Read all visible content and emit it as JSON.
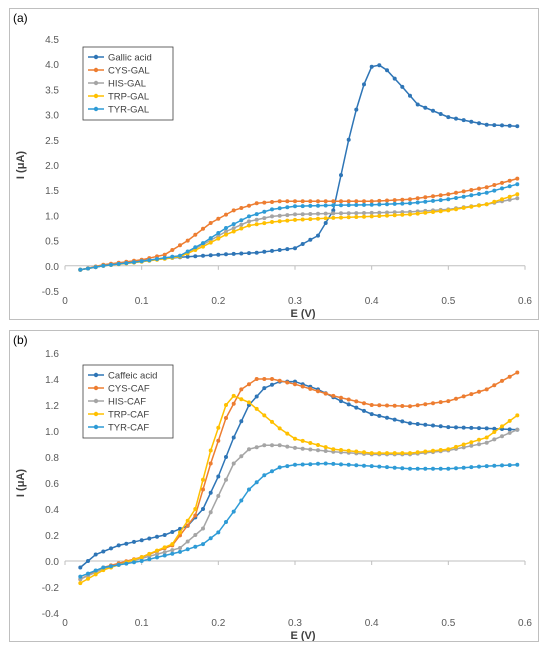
{
  "chart_data": [
    {
      "type": "line",
      "panel_label": "(a)",
      "xlabel": "E (V)",
      "ylabel": "I (μA)",
      "xlim": [
        0,
        0.6
      ],
      "ylim": [
        -0.5,
        4.5
      ],
      "xticks": [
        0,
        0.1,
        0.2,
        0.3,
        0.4,
        0.5,
        0.6
      ],
      "xtick_labels": [
        "0",
        "0.1",
        "0.2",
        "0.3",
        "0.4",
        "0.5",
        "0.6"
      ],
      "yticks": [
        -0.5,
        0,
        0.5,
        1,
        1.5,
        2,
        2.5,
        3,
        3.5,
        4,
        4.5
      ],
      "ytick_labels": [
        "-0.5",
        "0.0",
        "0.5",
        "1.0",
        "1.5",
        "2.0",
        "2.5",
        "3.0",
        "3.5",
        "4.0",
        "4.5"
      ],
      "grid": false,
      "legend_position": "top-left",
      "series": [
        {
          "name": "Gallic acid",
          "color": "#2e75b6",
          "x": [
            0.02,
            0.05,
            0.1,
            0.15,
            0.2,
            0.25,
            0.3,
            0.33,
            0.35,
            0.36,
            0.37,
            0.38,
            0.39,
            0.4,
            0.41,
            0.42,
            0.44,
            0.46,
            0.5,
            0.55,
            0.59
          ],
          "y": [
            -0.08,
            0.0,
            0.1,
            0.17,
            0.22,
            0.26,
            0.35,
            0.6,
            1.1,
            1.8,
            2.5,
            3.1,
            3.6,
            3.95,
            3.98,
            3.88,
            3.55,
            3.2,
            2.95,
            2.8,
            2.77
          ]
        },
        {
          "name": "CYS-GAL",
          "color": "#ed7d31",
          "x": [
            0.02,
            0.05,
            0.1,
            0.13,
            0.16,
            0.19,
            0.22,
            0.25,
            0.28,
            0.3,
            0.35,
            0.4,
            0.45,
            0.5,
            0.55,
            0.59
          ],
          "y": [
            -0.08,
            0.02,
            0.12,
            0.22,
            0.5,
            0.85,
            1.1,
            1.24,
            1.28,
            1.28,
            1.28,
            1.28,
            1.32,
            1.42,
            1.56,
            1.73
          ]
        },
        {
          "name": "HIS-GAL",
          "color": "#a5a5a5",
          "x": [
            0.02,
            0.05,
            0.1,
            0.15,
            0.18,
            0.21,
            0.24,
            0.27,
            0.3,
            0.35,
            0.4,
            0.45,
            0.5,
            0.55,
            0.59
          ],
          "y": [
            -0.08,
            0.0,
            0.09,
            0.2,
            0.42,
            0.68,
            0.88,
            0.98,
            1.02,
            1.04,
            1.05,
            1.07,
            1.12,
            1.22,
            1.34
          ]
        },
        {
          "name": "TRP-GAL",
          "color": "#ffc000",
          "x": [
            0.02,
            0.05,
            0.1,
            0.15,
            0.18,
            0.21,
            0.24,
            0.27,
            0.3,
            0.35,
            0.4,
            0.45,
            0.5,
            0.55,
            0.59
          ],
          "y": [
            -0.08,
            0.0,
            0.08,
            0.18,
            0.38,
            0.62,
            0.8,
            0.87,
            0.91,
            0.95,
            0.98,
            1.02,
            1.1,
            1.22,
            1.42
          ]
        },
        {
          "name": "TYR-GAL",
          "color": "#2e9bd6",
          "x": [
            0.02,
            0.05,
            0.1,
            0.15,
            0.18,
            0.21,
            0.24,
            0.27,
            0.3,
            0.35,
            0.4,
            0.45,
            0.5,
            0.55,
            0.59
          ],
          "y": [
            -0.08,
            0.0,
            0.09,
            0.2,
            0.45,
            0.75,
            0.98,
            1.12,
            1.18,
            1.2,
            1.21,
            1.24,
            1.32,
            1.45,
            1.62
          ]
        }
      ]
    },
    {
      "type": "line",
      "panel_label": "(b)",
      "xlabel": "E (V)",
      "ylabel": "I (μA)",
      "xlim": [
        0,
        0.6
      ],
      "ylim": [
        -0.4,
        1.6
      ],
      "xticks": [
        0,
        0.1,
        0.2,
        0.3,
        0.4,
        0.5,
        0.6
      ],
      "xtick_labels": [
        "0",
        "0.1",
        "0.2",
        "0.3",
        "0.4",
        "0.5",
        "0.6"
      ],
      "yticks": [
        -0.4,
        -0.2,
        0,
        0.2,
        0.4,
        0.6,
        0.8,
        1,
        1.2,
        1.4,
        1.6
      ],
      "ytick_labels": [
        "-0.4",
        "-0.2",
        "0.0",
        "0.2",
        "0.4",
        "0.6",
        "0.8",
        "1.0",
        "1.2",
        "1.4",
        "1.6"
      ],
      "grid": false,
      "legend_position": "top-left",
      "series": [
        {
          "name": "Caffeic acid",
          "color": "#2e75b6",
          "x": [
            0.02,
            0.04,
            0.07,
            0.1,
            0.13,
            0.16,
            0.18,
            0.2,
            0.22,
            0.24,
            0.26,
            0.28,
            0.3,
            0.33,
            0.36,
            0.4,
            0.45,
            0.5,
            0.55,
            0.59
          ],
          "y": [
            -0.05,
            0.05,
            0.12,
            0.16,
            0.2,
            0.27,
            0.4,
            0.65,
            0.95,
            1.2,
            1.33,
            1.38,
            1.38,
            1.32,
            1.23,
            1.13,
            1.06,
            1.03,
            1.02,
            1.01
          ]
        },
        {
          "name": "CYS-CAF",
          "color": "#ed7d31",
          "x": [
            0.02,
            0.05,
            0.1,
            0.14,
            0.17,
            0.19,
            0.21,
            0.23,
            0.25,
            0.27,
            0.3,
            0.35,
            0.4,
            0.45,
            0.5,
            0.55,
            0.59
          ],
          "y": [
            -0.14,
            -0.05,
            0.03,
            0.12,
            0.35,
            0.75,
            1.1,
            1.32,
            1.4,
            1.4,
            1.36,
            1.27,
            1.2,
            1.19,
            1.23,
            1.32,
            1.45
          ]
        },
        {
          "name": "HIS-CAF",
          "color": "#a5a5a5",
          "x": [
            0.02,
            0.05,
            0.1,
            0.15,
            0.18,
            0.2,
            0.22,
            0.24,
            0.26,
            0.28,
            0.3,
            0.35,
            0.4,
            0.45,
            0.5,
            0.55,
            0.59
          ],
          "y": [
            -0.14,
            -0.06,
            0.02,
            0.1,
            0.25,
            0.5,
            0.75,
            0.86,
            0.89,
            0.89,
            0.87,
            0.84,
            0.82,
            0.82,
            0.85,
            0.91,
            1.01
          ]
        },
        {
          "name": "TRP-CAF",
          "color": "#ffc000",
          "x": [
            0.02,
            0.05,
            0.1,
            0.14,
            0.17,
            0.19,
            0.21,
            0.22,
            0.24,
            0.26,
            0.28,
            0.3,
            0.35,
            0.4,
            0.45,
            0.5,
            0.55,
            0.59
          ],
          "y": [
            -0.17,
            -0.07,
            0.03,
            0.13,
            0.4,
            0.85,
            1.2,
            1.27,
            1.22,
            1.12,
            1.02,
            0.94,
            0.86,
            0.83,
            0.83,
            0.86,
            0.95,
            1.12
          ]
        },
        {
          "name": "TYR-CAF",
          "color": "#2e9bd6",
          "x": [
            0.02,
            0.05,
            0.1,
            0.15,
            0.18,
            0.2,
            0.22,
            0.24,
            0.26,
            0.28,
            0.3,
            0.34,
            0.4,
            0.45,
            0.5,
            0.55,
            0.59
          ],
          "y": [
            -0.12,
            -0.05,
            0.0,
            0.07,
            0.13,
            0.22,
            0.38,
            0.55,
            0.66,
            0.72,
            0.74,
            0.75,
            0.73,
            0.71,
            0.71,
            0.73,
            0.74
          ]
        }
      ]
    }
  ]
}
